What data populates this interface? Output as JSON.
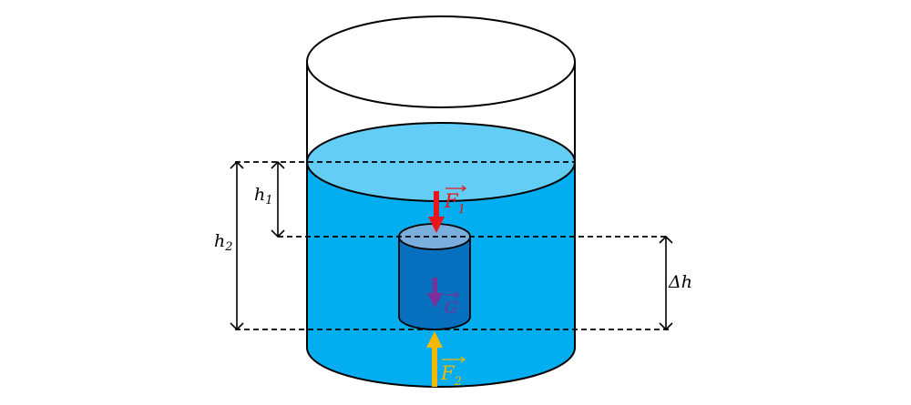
{
  "labels": {
    "h1": {
      "main": "h",
      "sub": "1"
    },
    "h2": {
      "main": "h",
      "sub": "2"
    },
    "delta_h": "Δh",
    "f1": {
      "main": "F",
      "sub": "1"
    },
    "f2": {
      "main": "F",
      "sub": "2"
    },
    "g": "G"
  },
  "colors": {
    "water": "#02aeef",
    "water_surface": "#63cdf5",
    "object_side": "#0670bf",
    "object_top": "#7aaedc",
    "f1": "#e8151b",
    "f2": "#f5b800",
    "g": "#7a2f9a"
  }
}
